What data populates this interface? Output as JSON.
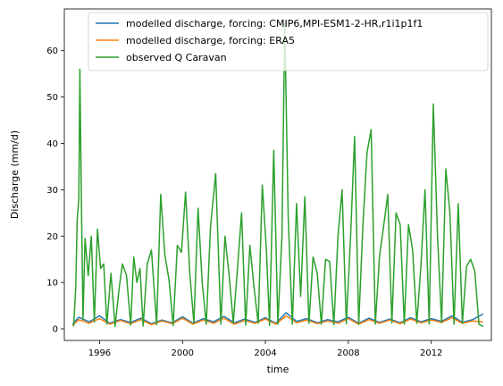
{
  "chart_data": {
    "type": "line",
    "xlabel": "time",
    "ylabel": "Discharge (mm/d)",
    "x_range": [
      1994.3,
      2014.9
    ],
    "ylim": [
      -2.5,
      69
    ],
    "x_ticks": [
      1996,
      2000,
      2004,
      2008,
      2012
    ],
    "y_ticks": [
      0,
      10,
      20,
      30,
      40,
      50,
      60
    ],
    "legend_position": "top-right",
    "grid": false,
    "series": [
      {
        "name": "modelled discharge, forcing: CMIP6,MPI-ESM1-2-HR,r1i1p1f1",
        "color": "#1f77b4",
        "x": [
          1994.7,
          1995.0,
          1995.5,
          1996.0,
          1996.5,
          1997.0,
          1997.5,
          1998.0,
          1998.5,
          1999.0,
          1999.5,
          2000.0,
          2000.5,
          2001.0,
          2001.5,
          2002.0,
          2002.5,
          2003.0,
          2003.5,
          2004.0,
          2004.5,
          2005.0,
          2005.5,
          2006.0,
          2006.5,
          2007.0,
          2007.5,
          2008.0,
          2008.5,
          2009.0,
          2009.5,
          2010.0,
          2010.5,
          2011.0,
          2011.5,
          2012.0,
          2012.5,
          2013.0,
          2013.5,
          2014.0,
          2014.5
        ],
        "values": [
          1.0,
          2.5,
          1.5,
          2.8,
          1.2,
          2.0,
          1.4,
          2.3,
          1.1,
          1.9,
          1.3,
          2.6,
          1.2,
          2.2,
          1.5,
          2.7,
          1.3,
          2.1,
          1.4,
          2.4,
          1.2,
          3.5,
          1.6,
          2.2,
          1.3,
          2.0,
          1.5,
          2.5,
          1.2,
          2.3,
          1.4,
          2.1,
          1.3,
          2.4,
          1.5,
          2.2,
          1.6,
          2.8,
          1.4,
          2.0,
          3.2
        ]
      },
      {
        "name": "modelled discharge, forcing: ERA5",
        "color": "#ff7f0e",
        "x": [
          1994.7,
          1995.0,
          1995.5,
          1996.0,
          1996.5,
          1997.0,
          1997.5,
          1998.0,
          1998.5,
          1999.0,
          1999.5,
          2000.0,
          2000.5,
          2001.0,
          2001.5,
          2002.0,
          2002.5,
          2003.0,
          2003.5,
          2004.0,
          2004.5,
          2005.0,
          2005.5,
          2006.0,
          2006.5,
          2007.0,
          2007.5,
          2008.0,
          2008.5,
          2009.0,
          2009.5,
          2010.0,
          2010.5,
          2011.0,
          2011.5,
          2012.0,
          2012.5,
          2013.0,
          2013.5,
          2014.0,
          2014.5
        ],
        "values": [
          0.8,
          2.0,
          1.2,
          2.2,
          1.0,
          1.8,
          1.1,
          2.0,
          0.9,
          1.7,
          1.1,
          2.3,
          1.0,
          1.9,
          1.2,
          2.3,
          1.0,
          1.8,
          1.2,
          2.1,
          1.0,
          2.8,
          1.3,
          1.9,
          1.1,
          1.7,
          1.2,
          2.2,
          1.0,
          2.0,
          1.2,
          1.9,
          1.1,
          2.1,
          1.3,
          1.9,
          1.4,
          2.4,
          1.2,
          1.7,
          1.5
        ]
      },
      {
        "name": "observed Q Caravan",
        "color": "#2ca02c",
        "x": [
          1994.75,
          1994.85,
          1994.92,
          1995.0,
          1995.05,
          1995.12,
          1995.2,
          1995.3,
          1995.45,
          1995.6,
          1995.75,
          1995.9,
          1996.05,
          1996.2,
          1996.35,
          1996.55,
          1996.75,
          1996.95,
          1997.1,
          1997.3,
          1997.5,
          1997.65,
          1997.8,
          1997.95,
          1998.1,
          1998.3,
          1998.5,
          1998.75,
          1998.95,
          1999.15,
          1999.35,
          1999.55,
          1999.75,
          1999.95,
          2000.15,
          2000.35,
          2000.55,
          2000.75,
          2000.95,
          2001.15,
          2001.35,
          2001.6,
          2001.85,
          2002.05,
          2002.25,
          2002.45,
          2002.65,
          2002.85,
          2003.05,
          2003.25,
          2003.45,
          2003.65,
          2003.85,
          2004.05,
          2004.2,
          2004.4,
          2004.6,
          2004.8,
          2004.93,
          2005.1,
          2005.3,
          2005.5,
          2005.7,
          2005.9,
          2006.1,
          2006.3,
          2006.5,
          2006.7,
          2006.9,
          2007.1,
          2007.3,
          2007.5,
          2007.7,
          2007.9,
          2008.1,
          2008.3,
          2008.5,
          2008.7,
          2008.9,
          2009.1,
          2009.3,
          2009.5,
          2009.7,
          2009.9,
          2010.1,
          2010.3,
          2010.5,
          2010.7,
          2010.9,
          2011.1,
          2011.3,
          2011.5,
          2011.7,
          2011.9,
          2012.1,
          2012.3,
          2012.5,
          2012.7,
          2012.9,
          2013.1,
          2013.3,
          2013.5,
          2013.7,
          2013.9,
          2014.1,
          2014.3,
          2014.5
        ],
        "values": [
          0.5,
          9.0,
          23.5,
          28.0,
          56.0,
          29.5,
          2.0,
          19.5,
          11.5,
          20.0,
          1.5,
          21.5,
          13.0,
          14.0,
          1.0,
          12.0,
          0.5,
          9.0,
          14.0,
          11.5,
          0.8,
          15.5,
          10.0,
          13.0,
          0.6,
          14.0,
          17.0,
          0.9,
          29.0,
          16.0,
          10.5,
          0.7,
          18.0,
          16.5,
          29.5,
          12.0,
          1.2,
          26.0,
          10.0,
          1.0,
          22.0,
          33.5,
          1.0,
          20.0,
          11.5,
          1.3,
          13.0,
          25.0,
          0.8,
          18.0,
          9.0,
          1.2,
          31.0,
          17.0,
          0.7,
          38.5,
          1.0,
          20.0,
          66.0,
          24.0,
          1.0,
          27.0,
          7.0,
          28.5,
          1.2,
          15.5,
          12.0,
          1.0,
          15.0,
          14.5,
          0.9,
          20.0,
          30.0,
          1.1,
          19.0,
          41.5,
          1.0,
          22.0,
          38.0,
          43.0,
          1.0,
          15.5,
          22.0,
          29.0,
          1.3,
          25.0,
          22.5,
          1.0,
          22.5,
          17.0,
          1.2,
          13.5,
          30.0,
          1.0,
          48.5,
          20.0,
          1.3,
          34.5,
          25.0,
          1.0,
          27.0,
          1.2,
          13.5,
          15.0,
          12.5,
          1.0,
          0.5
        ]
      }
    ]
  }
}
